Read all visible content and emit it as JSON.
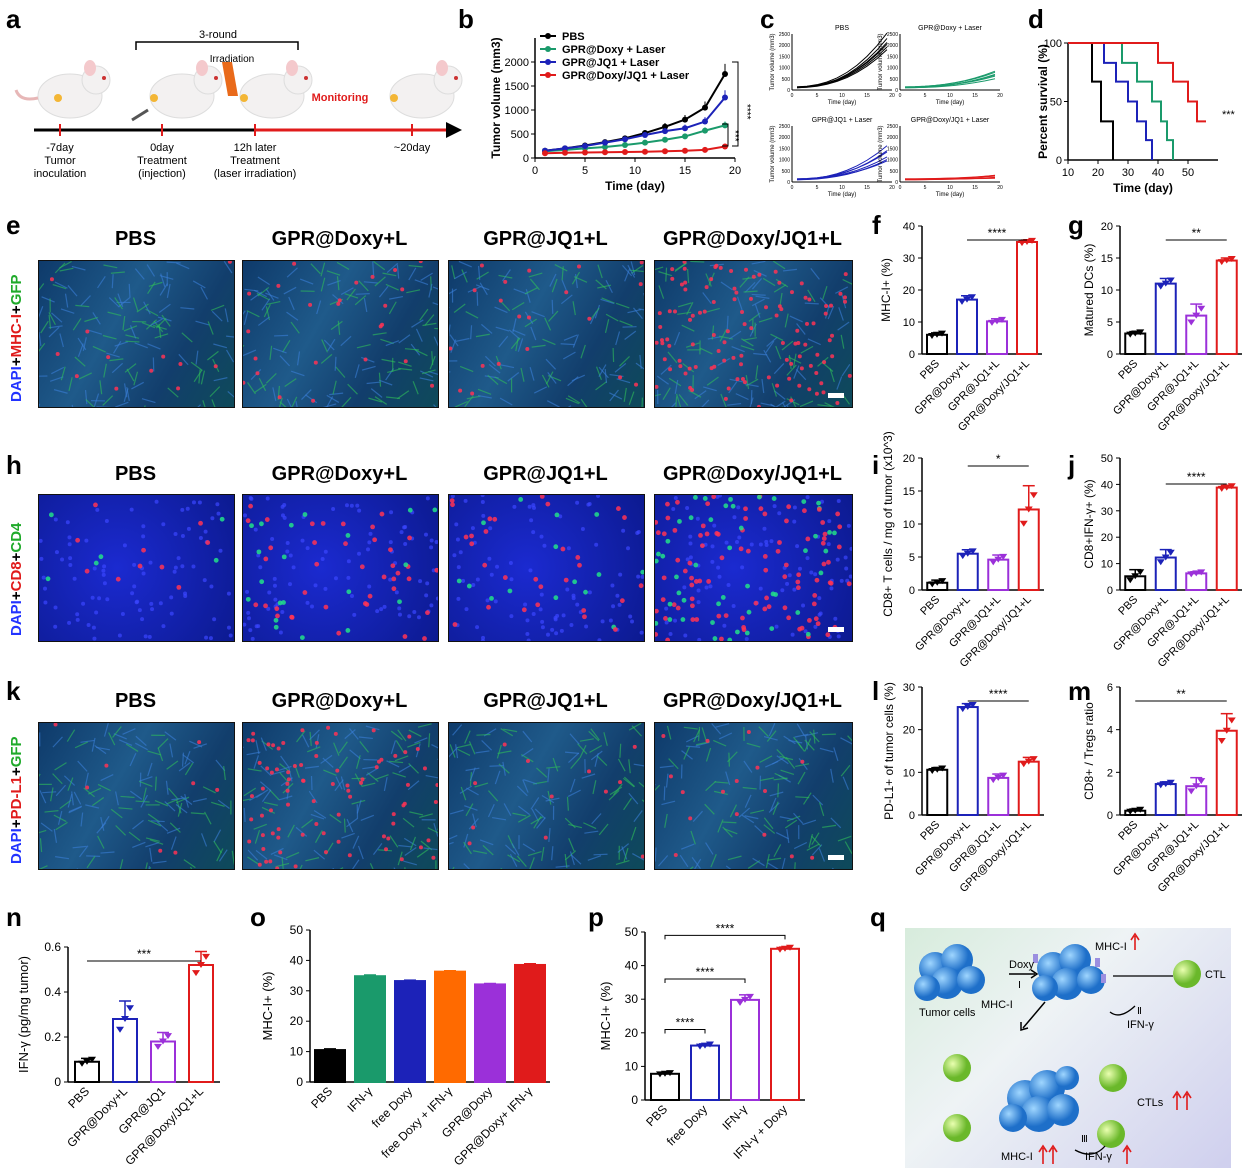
{
  "panels": {
    "a": "a",
    "b": "b",
    "c": "c",
    "d": "d",
    "e": "e",
    "f": "f",
    "g": "g",
    "h": "h",
    "i": "i",
    "j": "j",
    "k": "k",
    "l": "l",
    "m": "m",
    "n": "n",
    "o": "o",
    "p": "p",
    "q": "q"
  },
  "colors": {
    "black": "#000000",
    "green": "#1a9a6b",
    "blue": "#1c22b8",
    "red": "#e01b1b",
    "purple": "#9b30d9",
    "orange": "#ff6a00",
    "pink": "#ff3366"
  },
  "schematic": {
    "round_label": "3-round",
    "irradiation": "Irradiation",
    "monitoring": "Monitoring",
    "t1": "-7day",
    "t1b": "Tumor",
    "t1c": "inoculation",
    "t2": "0day",
    "t2b": "Treatment",
    "t2c": "(injection)",
    "t3": "12h later",
    "t3b": "Treatment",
    "t3c": "(laser irradiation)",
    "t4": "~20day"
  },
  "micro": {
    "groups": [
      "PBS",
      "GPR@Doxy+L",
      "GPR@JQ1+L",
      "GPR@Doxy/JQ1+L"
    ],
    "e_label": [
      {
        "t": "DAPI",
        "c": "#2233ff"
      },
      {
        "t": "+",
        "c": "#000"
      },
      {
        "t": "MHC-I",
        "c": "#e01b1b"
      },
      {
        "t": "+",
        "c": "#000"
      },
      {
        "t": "GFP",
        "c": "#1faa2a"
      }
    ],
    "h_label": [
      {
        "t": "DAPI",
        "c": "#2233ff"
      },
      {
        "t": "+",
        "c": "#000"
      },
      {
        "t": "CD8",
        "c": "#e01b1b"
      },
      {
        "t": "+",
        "c": "#000"
      },
      {
        "t": "CD4",
        "c": "#1faa2a"
      }
    ],
    "k_label": [
      {
        "t": "DAPI",
        "c": "#2233ff"
      },
      {
        "t": "+",
        "c": "#000"
      },
      {
        "t": "PD-L1",
        "c": "#e01b1b"
      },
      {
        "t": "+",
        "c": "#000"
      },
      {
        "t": "GFP",
        "c": "#1faa2a"
      }
    ]
  },
  "chart_data": [
    {
      "id": "b",
      "type": "line",
      "xlabel": "Time (day)",
      "ylabel": "Tumor volume (mm3)",
      "xlim": [
        0,
        20
      ],
      "ylim": [
        0,
        2500
      ],
      "xticks": [
        0,
        5,
        10,
        15,
        20
      ],
      "yticks": [
        0,
        500,
        1000,
        1500,
        2000
      ],
      "x": [
        1,
        3,
        5,
        7,
        9,
        11,
        13,
        15,
        17,
        19
      ],
      "series": [
        {
          "name": "PBS",
          "color": "#000000",
          "values": [
            150,
            200,
            260,
            330,
            410,
            520,
            650,
            800,
            1050,
            1750
          ]
        },
        {
          "name": "GPR@Doxy + Laser",
          "color": "#1a9a6b",
          "values": [
            140,
            170,
            200,
            230,
            270,
            320,
            380,
            450,
            570,
            680
          ]
        },
        {
          "name": "GPR@JQ1 + Laser",
          "color": "#1c22b8",
          "values": [
            150,
            200,
            250,
            320,
            390,
            480,
            560,
            620,
            760,
            1260
          ]
        },
        {
          "name": "GPR@Doxy/JQ1 + Laser",
          "color": "#e01b1b",
          "values": [
            100,
            110,
            115,
            120,
            125,
            130,
            140,
            150,
            170,
            240
          ]
        }
      ],
      "sig": [
        "****",
        "***"
      ]
    },
    {
      "id": "c",
      "type": "line",
      "subplots": [
        "PBS",
        "GPR@Doxy + Laser",
        "GPR@JQ1 + Laser",
        "GPR@Doxy/JQ1 + Laser"
      ],
      "xlabel": "Time (day)",
      "ylabel": "Tumor volume (mm3)",
      "xticks": [
        0,
        5,
        10,
        15,
        20
      ],
      "yticks": [
        0,
        500,
        1000,
        1500,
        2000,
        2500
      ],
      "ylim": [
        0,
        2500
      ]
    },
    {
      "id": "d",
      "type": "line",
      "xlabel": "Time (day)",
      "ylabel": "Percent survival (%)",
      "xlim": [
        10,
        60
      ],
      "ylim": [
        0,
        100
      ],
      "xticks": [
        10,
        20,
        30,
        40,
        50
      ],
      "yticks": [
        0,
        50,
        100
      ],
      "series": [
        {
          "name": "PBS",
          "color": "#000000",
          "steps": [
            [
              10,
              100
            ],
            [
              18,
              100
            ],
            [
              18,
              67
            ],
            [
              21,
              67
            ],
            [
              21,
              33
            ],
            [
              25,
              33
            ],
            [
              25,
              0
            ]
          ]
        },
        {
          "name": "GPR@JQ1 + Laser",
          "color": "#1c22b8",
          "steps": [
            [
              10,
              100
            ],
            [
              22,
              100
            ],
            [
              22,
              83
            ],
            [
              26,
              83
            ],
            [
              26,
              67
            ],
            [
              30,
              67
            ],
            [
              30,
              50
            ],
            [
              33,
              50
            ],
            [
              33,
              33
            ],
            [
              36,
              33
            ],
            [
              36,
              17
            ],
            [
              38,
              17
            ],
            [
              38,
              0
            ]
          ]
        },
        {
          "name": "GPR@Doxy + Laser",
          "color": "#1a9a6b",
          "steps": [
            [
              10,
              100
            ],
            [
              28,
              100
            ],
            [
              28,
              83
            ],
            [
              33,
              83
            ],
            [
              33,
              67
            ],
            [
              38,
              67
            ],
            [
              38,
              50
            ],
            [
              41,
              50
            ],
            [
              41,
              33
            ],
            [
              43,
              33
            ],
            [
              43,
              17
            ],
            [
              45,
              17
            ],
            [
              45,
              0
            ]
          ]
        },
        {
          "name": "GPR@Doxy/JQ1 + Laser",
          "color": "#e01b1b",
          "steps": [
            [
              10,
              100
            ],
            [
              40,
              100
            ],
            [
              40,
              83
            ],
            [
              45,
              83
            ],
            [
              45,
              67
            ],
            [
              50,
              67
            ],
            [
              50,
              50
            ],
            [
              53,
              50
            ],
            [
              53,
              33
            ],
            [
              56,
              33
            ]
          ]
        }
      ],
      "sig": "***"
    },
    {
      "id": "f",
      "type": "bar",
      "ylabel": "MHC-I+ (%)",
      "ylim": [
        0,
        40
      ],
      "yticks": [
        0,
        10,
        20,
        30,
        40
      ],
      "categories": [
        "PBS",
        "GPR@Doxy+L",
        "GPR@JQ1+L",
        "GPR@Doxy/JQ1+L"
      ],
      "values": [
        6,
        17,
        10.2,
        35
      ],
      "errors": [
        0.6,
        1.2,
        0.8,
        0.6
      ],
      "sig": "****",
      "sig_pair": [
        1,
        3
      ]
    },
    {
      "id": "g",
      "type": "bar",
      "ylabel": "Matured DCs (%)",
      "ylim": [
        0,
        20
      ],
      "yticks": [
        0,
        5,
        10,
        15,
        20
      ],
      "categories": [
        "PBS",
        "GPR@Doxy+L",
        "GPR@JQ1+L",
        "GPR@Doxy/JQ1+L"
      ],
      "values": [
        3.2,
        11,
        6,
        14.6
      ],
      "errors": [
        0.3,
        0.8,
        1.8,
        0.4
      ],
      "sig": "**",
      "sig_pair": [
        1,
        3
      ]
    },
    {
      "id": "i",
      "type": "bar",
      "ylabel": "CD8+ T cells / mg of tumor (x10^3)",
      "ylim": [
        0,
        20
      ],
      "yticks": [
        0,
        5,
        10,
        15,
        20
      ],
      "categories": [
        "PBS",
        "GPR@Doxy+L",
        "GPR@JQ1+L",
        "GPR@Doxy/JQ1+L"
      ],
      "values": [
        1.1,
        5.5,
        4.6,
        12.2
      ],
      "errors": [
        0.4,
        0.6,
        0.7,
        3.6
      ],
      "sig": "*",
      "sig_pair": [
        1,
        3
      ]
    },
    {
      "id": "j",
      "type": "bar",
      "ylabel": "CD8+IFN-γ+ (%)",
      "ylim": [
        0,
        50
      ],
      "yticks": [
        0,
        10,
        20,
        30,
        40,
        50
      ],
      "categories": [
        "PBS",
        "GPR@Doxy+L",
        "GPR@JQ1+L",
        "GPR@Doxy/JQ1+L"
      ],
      "values": [
        5.2,
        12.3,
        6.3,
        38.8
      ],
      "errors": [
        2.5,
        3,
        0.6,
        0.8
      ],
      "sig": "****",
      "sig_pair": [
        1,
        3
      ]
    },
    {
      "id": "l",
      "type": "bar",
      "ylabel": "PD-L1+ of tumor cells (%)",
      "ylim": [
        0,
        30
      ],
      "yticks": [
        0,
        10,
        20,
        30
      ],
      "categories": [
        "PBS",
        "GPR@Doxy+L",
        "GPR@JQ1+L",
        "GPR@Doxy/JQ1+L"
      ],
      "values": [
        10.6,
        25.3,
        8.7,
        12.5
      ],
      "errors": [
        0.5,
        0.8,
        0.9,
        1
      ],
      "sig": "****",
      "sig_pair": [
        1,
        3
      ]
    },
    {
      "id": "m",
      "type": "bar",
      "ylabel": "CD8+ / Tregs ratio",
      "ylim": [
        0,
        6
      ],
      "yticks": [
        0,
        2,
        4,
        6
      ],
      "categories": [
        "PBS",
        "GPR@Doxy+L",
        "GPR@JQ1+L",
        "GPR@Doxy/JQ1+L"
      ],
      "values": [
        0.2,
        1.45,
        1.35,
        3.95
      ],
      "errors": [
        0.08,
        0.1,
        0.4,
        0.8
      ],
      "sig": "**",
      "sig_pair": [
        0,
        3
      ]
    },
    {
      "id": "n",
      "type": "bar",
      "ylabel": "IFN-γ (pg/mg tumor)",
      "ylim": [
        0,
        0.6
      ],
      "yticks": [
        0,
        0.2,
        0.4,
        0.6
      ],
      "categories": [
        "PBS",
        "GPR@Doxy+L",
        "GPR@JQ1",
        "GPR@Doxy/JQ1+L"
      ],
      "values": [
        0.09,
        0.28,
        0.18,
        0.52
      ],
      "errors": [
        0.015,
        0.08,
        0.04,
        0.06
      ],
      "sig": "***",
      "sig_pair": [
        0,
        3
      ]
    },
    {
      "id": "o",
      "type": "bar",
      "ylabel": "MHC-I+ (%)",
      "ylim": [
        0,
        50
      ],
      "yticks": [
        0,
        10,
        20,
        30,
        40,
        50
      ],
      "categories": [
        "PBS",
        "IFN-γ",
        "free Doxy",
        "free Doxy + IFN-γ",
        "GPR@Doxy",
        "GPR@Doxy+ IFN-γ"
      ],
      "values": [
        10.5,
        34.8,
        33.2,
        36.3,
        32.1,
        38.5
      ],
      "errors": [
        0.4,
        0.4,
        0.3,
        0.3,
        0.3,
        0.4
      ],
      "colors": [
        "#000000",
        "#1a9a6b",
        "#1c22b8",
        "#ff6a00",
        "#9b30d9",
        "#e01b1b"
      ]
    },
    {
      "id": "p",
      "type": "bar",
      "ylabel": "MHC-I+ (%)",
      "ylim": [
        0,
        50
      ],
      "yticks": [
        0,
        10,
        20,
        30,
        40,
        50
      ],
      "categories": [
        "PBS",
        "free Doxy",
        "IFN-γ",
        "IFN-γ + Doxy"
      ],
      "values": [
        7.8,
        16.2,
        29.8,
        45
      ],
      "errors": [
        0.3,
        0.5,
        1.5,
        0.5
      ],
      "sig": [
        "****",
        "****",
        "****"
      ]
    }
  ],
  "schema_q": {
    "mhc_top": "MHC-I",
    "doxy": "Doxy",
    "roman1": "Ⅰ",
    "tumor_cells": "Tumor cells",
    "mhc_left": "MHC-I",
    "ctl": "CTL",
    "roman2": "Ⅱ",
    "ifn1": "IFN-γ",
    "ctls": "CTLs",
    "roman3": "Ⅲ",
    "ifn2": "IFN-γ",
    "mhc_bottom": "MHC-I"
  }
}
